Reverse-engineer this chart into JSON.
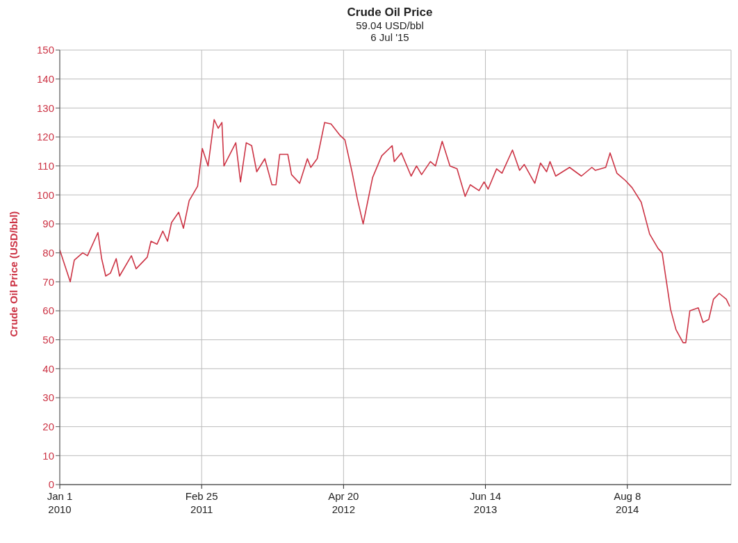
{
  "chart_data": {
    "type": "line",
    "title": "Crude Oil Price",
    "subtitle": "59.04 USD/bbl\n6 Jul '15",
    "ylabel": "Crude Oil Price (USD/bbl)",
    "xlim": [
      "2010-01-01",
      "2015-06-11"
    ],
    "xticks": [
      {
        "value": "2010-01-01",
        "label": "Jan 1\n2010"
      },
      {
        "value": "2011-02-25",
        "label": "Feb 25\n2011"
      },
      {
        "value": "2012-04-20",
        "label": "Apr 20\n2012"
      },
      {
        "value": "2013-06-14",
        "label": "Jun 14\n2013"
      },
      {
        "value": "2014-08-08",
        "label": "Aug 8\n2014"
      }
    ],
    "ylim": [
      0,
      150
    ],
    "yticks": [
      0,
      10,
      20,
      30,
      40,
      50,
      60,
      70,
      80,
      90,
      100,
      110,
      120,
      130,
      140,
      150
    ],
    "grid": true,
    "x": [
      "2010-01-01",
      "2010-02-01",
      "2010-02-13",
      "2010-03-10",
      "2010-03-24",
      "2010-04-24",
      "2010-05-05",
      "2010-05-17",
      "2010-05-31",
      "2010-06-17",
      "2010-06-27",
      "2010-08-01",
      "2010-08-15",
      "2010-09-17",
      "2010-09-28",
      "2010-10-16",
      "2010-11-02",
      "2010-11-16",
      "2010-11-28",
      "2010-12-19",
      "2011-01-02",
      "2011-01-19",
      "2011-02-13",
      "2011-02-27",
      "2011-03-16",
      "2011-04-03",
      "2011-04-15",
      "2011-04-26",
      "2011-05-02",
      "2011-06-06",
      "2011-06-20",
      "2011-07-07",
      "2011-07-23",
      "2011-08-07",
      "2011-08-31",
      "2011-09-21",
      "2011-10-03",
      "2011-10-14",
      "2011-11-07",
      "2011-11-18",
      "2011-12-12",
      "2012-01-04",
      "2012-01-14",
      "2012-02-02",
      "2012-02-24",
      "2012-03-14",
      "2012-04-10",
      "2012-04-24",
      "2012-05-15",
      "2012-05-31",
      "2012-06-17",
      "2012-07-15",
      "2012-08-11",
      "2012-09-11",
      "2012-09-17",
      "2012-10-08",
      "2012-11-06",
      "2012-11-22",
      "2012-12-07",
      "2013-01-02",
      "2013-01-17",
      "2013-02-06",
      "2013-03-01",
      "2013-03-22",
      "2013-04-15",
      "2013-04-30",
      "2013-05-26",
      "2013-06-10",
      "2013-06-22",
      "2013-07-17",
      "2013-08-02",
      "2013-09-02",
      "2013-09-23",
      "2013-10-07",
      "2013-11-07",
      "2013-11-24",
      "2013-12-12",
      "2013-12-22",
      "2014-01-08",
      "2014-02-18",
      "2014-03-25",
      "2014-04-25",
      "2014-05-05",
      "2014-06-05",
      "2014-06-18",
      "2014-07-08",
      "2014-08-02",
      "2014-08-22",
      "2014-09-18",
      "2014-10-13",
      "2014-11-07",
      "2014-11-19",
      "2014-12-14",
      "2014-12-30",
      "2015-01-20",
      "2015-01-28",
      "2015-02-09",
      "2015-03-06",
      "2015-03-20",
      "2015-04-06",
      "2015-04-20",
      "2015-05-07",
      "2015-05-28",
      "2015-06-07"
    ],
    "series": [
      {
        "color": "#cc3344",
        "values": [
          81,
          70,
          77.5,
          80,
          79,
          87,
          78,
          72,
          73,
          78,
          72,
          79,
          74.5,
          78.5,
          84,
          83,
          87.5,
          84,
          90.5,
          94,
          88.5,
          98,
          103,
          116,
          110,
          126,
          123,
          125,
          110,
          118,
          104.5,
          118,
          117,
          108,
          112.5,
          103.5,
          103.5,
          114,
          114,
          107,
          104,
          112.5,
          109.5,
          112.5,
          125,
          124.5,
          120.5,
          119,
          108,
          98.5,
          90,
          106,
          113.5,
          117,
          111.5,
          114.5,
          106.5,
          110,
          107,
          111.5,
          110,
          118.5,
          110,
          109,
          99.5,
          103.5,
          101.5,
          104.5,
          102,
          109,
          107.5,
          115.5,
          108.5,
          110.5,
          104,
          111,
          108,
          111.5,
          106.5,
          109.5,
          106.5,
          109.5,
          108.5,
          109.5,
          114.5,
          107.5,
          105,
          102.5,
          97.5,
          86.5,
          81.5,
          80,
          60.5,
          53.5,
          49,
          49,
          60,
          61,
          56,
          57,
          64,
          66,
          64,
          61.5
        ]
      }
    ]
  }
}
